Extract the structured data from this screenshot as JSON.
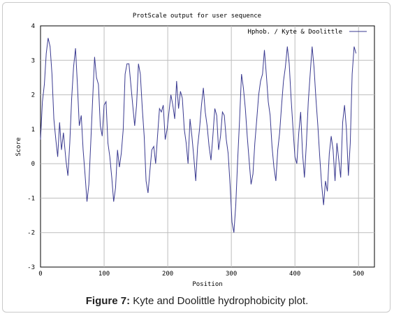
{
  "caption": {
    "label": "Figure 7:",
    "text": "Kyte and Doolittle hydrophobicity plot."
  },
  "chart_data": {
    "type": "line",
    "title": "ProtScale output for user sequence",
    "xlabel": "Position",
    "ylabel": "Score",
    "xlim": [
      0,
      525
    ],
    "ylim": [
      -3,
      4
    ],
    "x_ticks": [
      0,
      100,
      200,
      300,
      400,
      500
    ],
    "y_ticks": [
      -3,
      -2,
      -1,
      0,
      1,
      2,
      3,
      4
    ],
    "grid": true,
    "legend_position": "top-right",
    "line_color": "#3a3a90",
    "series": [
      {
        "name": "Hphob. / Kyte & Doolittle",
        "points": [
          [
            0,
            0.7
          ],
          [
            3,
            1.8
          ],
          [
            6,
            2.3
          ],
          [
            9,
            3.2
          ],
          [
            12,
            3.65
          ],
          [
            15,
            3.4
          ],
          [
            18,
            2.6
          ],
          [
            21,
            1.3
          ],
          [
            24,
            0.7
          ],
          [
            27,
            0.2
          ],
          [
            30,
            1.2
          ],
          [
            33,
            0.4
          ],
          [
            36,
            0.9
          ],
          [
            40,
            0.1
          ],
          [
            43,
            -0.35
          ],
          [
            46,
            0.6
          ],
          [
            49,
            1.9
          ],
          [
            52,
            2.8
          ],
          [
            55,
            3.35
          ],
          [
            58,
            2.3
          ],
          [
            61,
            1.1
          ],
          [
            64,
            1.4
          ],
          [
            67,
            0.4
          ],
          [
            70,
            -0.3
          ],
          [
            73,
            -1.1
          ],
          [
            76,
            -0.6
          ],
          [
            79,
            0.6
          ],
          [
            82,
            1.9
          ],
          [
            85,
            3.1
          ],
          [
            88,
            2.5
          ],
          [
            91,
            2.3
          ],
          [
            94,
            1.1
          ],
          [
            97,
            0.8
          ],
          [
            100,
            1.7
          ],
          [
            103,
            1.8
          ],
          [
            106,
            0.6
          ],
          [
            109,
            0.2
          ],
          [
            112,
            -0.4
          ],
          [
            115,
            -1.1
          ],
          [
            118,
            -0.7
          ],
          [
            121,
            0.4
          ],
          [
            124,
            -0.1
          ],
          [
            127,
            0.3
          ],
          [
            130,
            1.0
          ],
          [
            133,
            2.6
          ],
          [
            136,
            2.9
          ],
          [
            139,
            2.9
          ],
          [
            142,
            2.3
          ],
          [
            145,
            1.7
          ],
          [
            148,
            1.1
          ],
          [
            151,
            1.7
          ],
          [
            154,
            2.9
          ],
          [
            157,
            2.6
          ],
          [
            160,
            1.6
          ],
          [
            163,
            0.8
          ],
          [
            166,
            -0.5
          ],
          [
            169,
            -0.85
          ],
          [
            172,
            -0.2
          ],
          [
            175,
            0.4
          ],
          [
            178,
            0.5
          ],
          [
            181,
            0.0
          ],
          [
            184,
            0.8
          ],
          [
            187,
            1.6
          ],
          [
            190,
            1.5
          ],
          [
            193,
            1.7
          ],
          [
            196,
            0.7
          ],
          [
            199,
            1.0
          ],
          [
            202,
            1.5
          ],
          [
            205,
            2.0
          ],
          [
            208,
            1.7
          ],
          [
            211,
            1.3
          ],
          [
            214,
            2.4
          ],
          [
            217,
            1.6
          ],
          [
            220,
            2.1
          ],
          [
            223,
            1.9
          ],
          [
            226,
            1.0
          ],
          [
            229,
            0.6
          ],
          [
            232,
            0.0
          ],
          [
            235,
            1.3
          ],
          [
            238,
            0.8
          ],
          [
            241,
            0.2
          ],
          [
            244,
            -0.5
          ],
          [
            247,
            0.5
          ],
          [
            250,
            1.0
          ],
          [
            253,
            1.7
          ],
          [
            256,
            2.2
          ],
          [
            259,
            1.5
          ],
          [
            262,
            1.1
          ],
          [
            265,
            0.5
          ],
          [
            268,
            0.1
          ],
          [
            271,
            0.8
          ],
          [
            274,
            1.6
          ],
          [
            277,
            1.4
          ],
          [
            280,
            0.4
          ],
          [
            283,
            0.8
          ],
          [
            286,
            1.5
          ],
          [
            289,
            1.4
          ],
          [
            292,
            0.7
          ],
          [
            295,
            0.3
          ],
          [
            298,
            -0.6
          ],
          [
            301,
            -1.7
          ],
          [
            304,
            -2.0
          ],
          [
            307,
            -1.2
          ],
          [
            310,
            0.1
          ],
          [
            313,
            1.3
          ],
          [
            316,
            2.6
          ],
          [
            319,
            2.2
          ],
          [
            322,
            1.6
          ],
          [
            325,
            0.8
          ],
          [
            328,
            0.1
          ],
          [
            331,
            -0.6
          ],
          [
            334,
            -0.3
          ],
          [
            337,
            0.6
          ],
          [
            340,
            1.3
          ],
          [
            343,
            2.0
          ],
          [
            346,
            2.4
          ],
          [
            349,
            2.6
          ],
          [
            352,
            3.3
          ],
          [
            355,
            2.6
          ],
          [
            358,
            1.8
          ],
          [
            361,
            1.4
          ],
          [
            364,
            0.5
          ],
          [
            367,
            -0.1
          ],
          [
            370,
            -0.5
          ],
          [
            373,
            0.4
          ],
          [
            376,
            0.9
          ],
          [
            379,
            1.7
          ],
          [
            382,
            2.4
          ],
          [
            385,
            2.8
          ],
          [
            388,
            3.4
          ],
          [
            391,
            2.9
          ],
          [
            394,
            1.9
          ],
          [
            397,
            1.0
          ],
          [
            400,
            0.2
          ],
          [
            403,
            0.0
          ],
          [
            406,
            0.9
          ],
          [
            409,
            1.5
          ],
          [
            412,
            0.3
          ],
          [
            415,
            -0.4
          ],
          [
            418,
            0.6
          ],
          [
            421,
            1.8
          ],
          [
            424,
            2.6
          ],
          [
            427,
            3.4
          ],
          [
            430,
            2.8
          ],
          [
            433,
            1.9
          ],
          [
            436,
            1.1
          ],
          [
            439,
            0.2
          ],
          [
            442,
            -0.6
          ],
          [
            445,
            -1.2
          ],
          [
            448,
            -0.5
          ],
          [
            451,
            -0.8
          ],
          [
            454,
            0.3
          ],
          [
            457,
            0.8
          ],
          [
            460,
            0.4
          ],
          [
            463,
            -0.5
          ],
          [
            466,
            0.6
          ],
          [
            469,
            0.1
          ],
          [
            472,
            -0.4
          ],
          [
            475,
            1.2
          ],
          [
            478,
            1.7
          ],
          [
            481,
            1.0
          ],
          [
            484,
            -0.35
          ],
          [
            487,
            0.6
          ],
          [
            490,
            2.6
          ],
          [
            493,
            3.4
          ],
          [
            496,
            3.2
          ]
        ]
      }
    ]
  }
}
